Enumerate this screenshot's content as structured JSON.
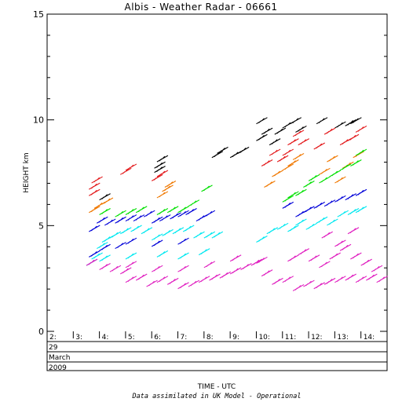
{
  "chart_data": {
    "type": "scatter",
    "title": "Albis - Weather Radar - 06661",
    "xlabel": "TIME - UTC",
    "ylabel": "HEIGHT km",
    "footnote": "Data assimilated in UK Model - Operational",
    "ylim": [
      0,
      15
    ],
    "xlim": [
      2.0,
      15.0
    ],
    "yticks": [
      "0",
      "5",
      "10",
      "15"
    ],
    "xticks": [
      "2:",
      "3:",
      "4:",
      "5:",
      "6:",
      "7:",
      "8:",
      "9:",
      "10:",
      "11:",
      "12:",
      "13:",
      "14:"
    ],
    "date_rows": [
      "29",
      "March",
      "2009"
    ],
    "grid": false,
    "series": [
      {
        "color": "#000000",
        "points": [
          [
            4.0,
            6.4
          ],
          [
            6.1,
            7.7
          ],
          [
            6.1,
            7.9
          ],
          [
            6.2,
            8.2
          ],
          [
            8.3,
            8.4
          ],
          [
            8.5,
            8.6
          ],
          [
            9.0,
            8.4
          ],
          [
            9.3,
            8.6
          ],
          [
            10.0,
            9.2
          ],
          [
            10.2,
            9.5
          ],
          [
            10.5,
            9.0
          ],
          [
            10.7,
            9.5
          ],
          [
            11.0,
            9.8
          ],
          [
            11.3,
            10.0
          ],
          [
            11.5,
            9.6
          ],
          [
            12.3,
            10.0
          ],
          [
            13.0,
            9.8
          ],
          [
            13.4,
            9.9
          ],
          [
            13.6,
            10.0
          ],
          [
            10.0,
            10.0
          ]
        ]
      },
      {
        "color": "#e31a1c",
        "points": [
          [
            3.6,
            6.6
          ],
          [
            3.6,
            6.9
          ],
          [
            3.7,
            7.2
          ],
          [
            4.8,
            7.6
          ],
          [
            5.0,
            7.8
          ],
          [
            6.0,
            7.3
          ],
          [
            6.2,
            7.5
          ],
          [
            10.2,
            8.0
          ],
          [
            10.5,
            8.5
          ],
          [
            10.8,
            8.2
          ],
          [
            11.0,
            8.5
          ],
          [
            11.2,
            9.0
          ],
          [
            11.4,
            9.4
          ],
          [
            11.6,
            9.0
          ],
          [
            12.2,
            8.8
          ],
          [
            12.6,
            9.5
          ],
          [
            13.2,
            9.0
          ],
          [
            13.5,
            9.2
          ],
          [
            13.8,
            9.6
          ]
        ]
      },
      {
        "color": "#f07800",
        "points": [
          [
            3.6,
            5.8
          ],
          [
            3.8,
            6.0
          ],
          [
            4.1,
            6.2
          ],
          [
            6.2,
            6.5
          ],
          [
            6.4,
            6.8
          ],
          [
            6.5,
            7.0
          ],
          [
            10.3,
            7.0
          ],
          [
            10.6,
            7.5
          ],
          [
            11.0,
            7.8
          ],
          [
            11.2,
            8.0
          ],
          [
            11.4,
            8.3
          ],
          [
            12.4,
            7.6
          ],
          [
            12.7,
            8.2
          ],
          [
            13.0,
            7.2
          ],
          [
            13.3,
            7.9
          ],
          [
            13.7,
            8.4
          ]
        ]
      },
      {
        "color": "#00e000",
        "points": [
          [
            4.0,
            5.7
          ],
          [
            4.6,
            5.6
          ],
          [
            5.0,
            5.7
          ],
          [
            5.4,
            5.8
          ],
          [
            6.2,
            5.7
          ],
          [
            6.6,
            5.8
          ],
          [
            7.0,
            5.8
          ],
          [
            7.4,
            6.1
          ],
          [
            7.9,
            6.8
          ],
          [
            11.0,
            6.3
          ],
          [
            11.2,
            6.5
          ],
          [
            11.5,
            6.6
          ],
          [
            11.8,
            7.0
          ],
          [
            12.0,
            7.3
          ],
          [
            12.4,
            7.2
          ],
          [
            12.8,
            7.5
          ],
          [
            13.2,
            7.8
          ],
          [
            13.6,
            8.0
          ],
          [
            13.8,
            8.5
          ]
        ]
      },
      {
        "color": "#0000d8",
        "points": [
          [
            3.6,
            4.9
          ],
          [
            3.9,
            5.3
          ],
          [
            4.2,
            5.2
          ],
          [
            4.6,
            5.3
          ],
          [
            5.0,
            5.4
          ],
          [
            5.3,
            5.4
          ],
          [
            5.7,
            5.6
          ],
          [
            6.0,
            5.3
          ],
          [
            6.3,
            5.4
          ],
          [
            6.7,
            5.5
          ],
          [
            7.0,
            5.6
          ],
          [
            7.3,
            5.7
          ],
          [
            7.7,
            5.4
          ],
          [
            8.0,
            5.6
          ],
          [
            3.6,
            3.7
          ],
          [
            4.0,
            4.0
          ],
          [
            4.6,
            4.1
          ],
          [
            5.0,
            4.3
          ],
          [
            6.0,
            4.2
          ],
          [
            7.0,
            4.3
          ],
          [
            11.0,
            6.0
          ],
          [
            11.5,
            5.6
          ],
          [
            11.8,
            5.8
          ],
          [
            12.2,
            6.0
          ],
          [
            12.6,
            6.1
          ],
          [
            13.0,
            6.3
          ],
          [
            13.4,
            6.4
          ],
          [
            13.8,
            6.6
          ]
        ]
      },
      {
        "color": "#00e8f0",
        "points": [
          [
            3.5,
            3.3
          ],
          [
            3.7,
            3.6
          ],
          [
            3.9,
            4.1
          ],
          [
            4.1,
            4.4
          ],
          [
            4.4,
            4.6
          ],
          [
            4.8,
            4.8
          ],
          [
            5.2,
            4.9
          ],
          [
            5.6,
            4.8
          ],
          [
            6.0,
            4.5
          ],
          [
            6.4,
            4.7
          ],
          [
            6.8,
            4.8
          ],
          [
            7.2,
            4.9
          ],
          [
            7.6,
            4.6
          ],
          [
            8.0,
            4.6
          ],
          [
            8.3,
            4.6
          ],
          [
            4.0,
            3.5
          ],
          [
            5.0,
            3.6
          ],
          [
            6.2,
            3.7
          ],
          [
            7.0,
            3.6
          ],
          [
            7.8,
            3.8
          ],
          [
            10.0,
            4.4
          ],
          [
            10.4,
            4.8
          ],
          [
            10.8,
            5.0
          ],
          [
            11.2,
            4.9
          ],
          [
            11.5,
            5.2
          ],
          [
            11.9,
            5.0
          ],
          [
            12.3,
            5.3
          ],
          [
            12.7,
            5.2
          ],
          [
            13.1,
            5.6
          ],
          [
            13.5,
            5.7
          ],
          [
            13.8,
            5.8
          ]
        ]
      },
      {
        "color": "#e020c0",
        "points": [
          [
            3.5,
            3.3
          ],
          [
            4.0,
            3.1
          ],
          [
            4.4,
            3.0
          ],
          [
            4.8,
            2.9
          ],
          [
            5.0,
            2.5
          ],
          [
            5.4,
            2.6
          ],
          [
            5.8,
            2.3
          ],
          [
            6.2,
            2.5
          ],
          [
            6.6,
            2.4
          ],
          [
            7.0,
            2.2
          ],
          [
            7.4,
            2.3
          ],
          [
            7.8,
            2.5
          ],
          [
            8.2,
            2.6
          ],
          [
            8.6,
            2.7
          ],
          [
            9.0,
            2.9
          ],
          [
            9.4,
            3.1
          ],
          [
            9.8,
            3.3
          ],
          [
            10.2,
            2.8
          ],
          [
            10.6,
            2.4
          ],
          [
            11.0,
            2.5
          ],
          [
            11.4,
            2.1
          ],
          [
            11.8,
            2.3
          ],
          [
            12.2,
            2.2
          ],
          [
            12.6,
            2.4
          ],
          [
            13.0,
            2.5
          ],
          [
            13.4,
            2.6
          ],
          [
            13.8,
            2.5
          ],
          [
            14.2,
            2.6
          ],
          [
            14.6,
            2.5
          ],
          [
            11.2,
            3.5
          ],
          [
            11.6,
            3.8
          ],
          [
            12.0,
            3.5
          ],
          [
            12.4,
            3.2
          ],
          [
            12.8,
            3.6
          ],
          [
            13.2,
            4.0
          ],
          [
            13.6,
            3.6
          ],
          [
            14.0,
            3.3
          ],
          [
            14.4,
            3.0
          ],
          [
            12.5,
            4.6
          ],
          [
            13.0,
            4.2
          ],
          [
            13.5,
            4.8
          ],
          [
            5.0,
            3.2
          ],
          [
            6.0,
            3.0
          ],
          [
            7.0,
            3.0
          ],
          [
            8.0,
            3.2
          ],
          [
            9.0,
            3.5
          ],
          [
            10.0,
            3.4
          ]
        ]
      }
    ]
  }
}
